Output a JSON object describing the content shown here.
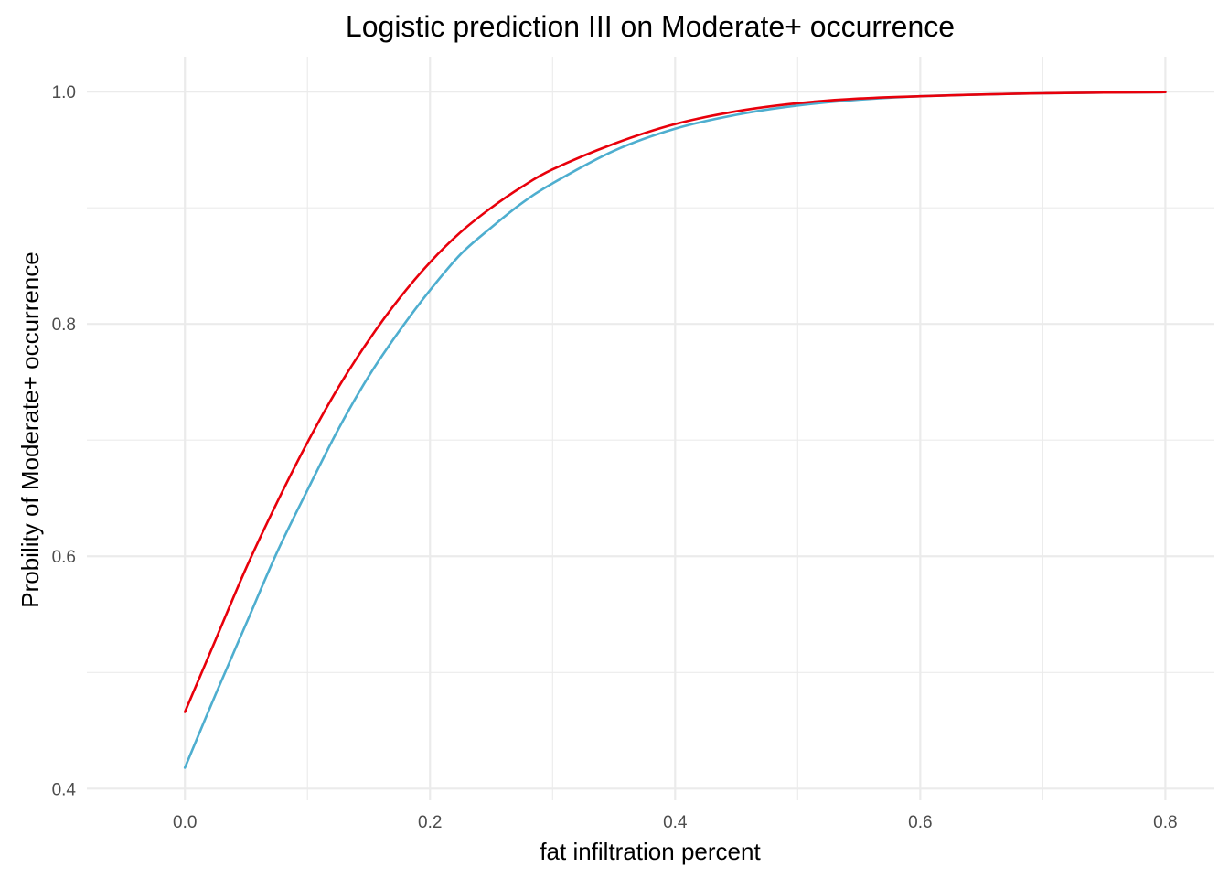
{
  "chart_data": {
    "type": "line",
    "title": "Logistic prediction III on Moderate+ occurrence",
    "xlabel": "fat infiltration percent",
    "ylabel": "Probility of Moderate+ occurrence",
    "xlim": [
      -0.08,
      0.84
    ],
    "ylim": [
      0.39,
      1.03
    ],
    "x_ticks": [
      0.0,
      0.2,
      0.4,
      0.6,
      0.8
    ],
    "x_tick_labels": [
      "0.0",
      "0.2",
      "0.4",
      "0.6",
      "0.8"
    ],
    "x_minor_ticks": [
      0.1,
      0.3,
      0.5,
      0.7
    ],
    "y_ticks": [
      0.4,
      0.6,
      0.8,
      1.0
    ],
    "y_tick_labels": [
      "0.4",
      "0.6",
      "0.8",
      "1.0"
    ],
    "y_minor_ticks": [
      0.5,
      0.7,
      0.9
    ],
    "grid": true,
    "legend": "none",
    "series": [
      {
        "color": "#e8000b",
        "x": [
          0.0,
          0.025,
          0.05,
          0.075,
          0.1,
          0.125,
          0.15,
          0.175,
          0.2,
          0.225,
          0.25,
          0.275,
          0.3,
          0.35,
          0.4,
          0.45,
          0.5,
          0.55,
          0.6,
          0.65,
          0.7,
          0.75,
          0.8
        ],
        "y": [
          0.466,
          0.528,
          0.59,
          0.646,
          0.698,
          0.745,
          0.786,
          0.822,
          0.853,
          0.879,
          0.9,
          0.918,
          0.933,
          0.955,
          0.972,
          0.983,
          0.99,
          0.994,
          0.996,
          0.9975,
          0.9985,
          0.9991,
          0.9995
        ]
      },
      {
        "color": "#4eaecf",
        "x": [
          0.0,
          0.025,
          0.05,
          0.075,
          0.1,
          0.125,
          0.15,
          0.175,
          0.2,
          0.225,
          0.25,
          0.275,
          0.3,
          0.35,
          0.4,
          0.45,
          0.5,
          0.55,
          0.6,
          0.65,
          0.7,
          0.75,
          0.8
        ],
        "y": [
          0.418,
          0.481,
          0.542,
          0.603,
          0.657,
          0.709,
          0.755,
          0.794,
          0.829,
          0.86,
          0.883,
          0.904,
          0.921,
          0.949,
          0.968,
          0.98,
          0.988,
          0.993,
          0.996,
          0.9975,
          0.9985,
          0.9991,
          0.9995
        ]
      }
    ]
  }
}
